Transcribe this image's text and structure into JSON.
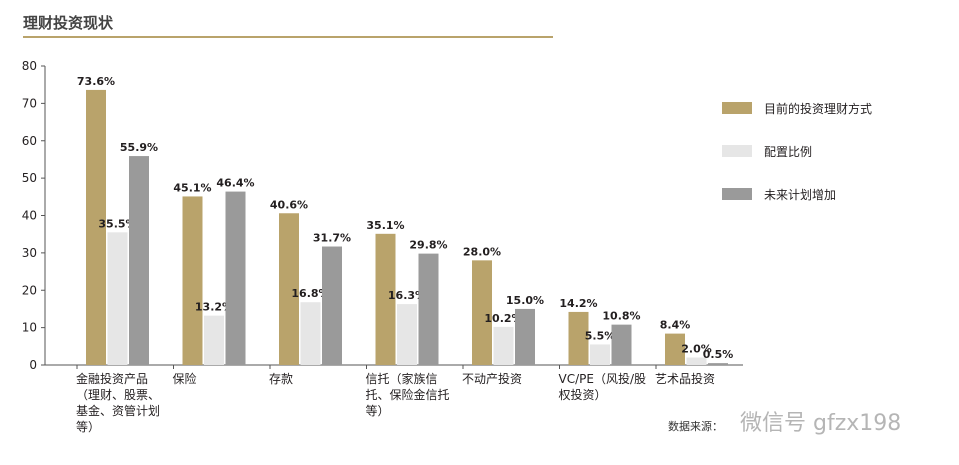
{
  "title": "理财投资现状",
  "source_label": "数据来源：",
  "watermark": "微信号 gfzx198",
  "chart_data": {
    "type": "bar",
    "title": "理财投资现状",
    "categories": [
      "金融投资产品（理财、股票、基金、资管计划等）",
      "保险",
      "存款",
      "信托（家族信托、保险金信托等）",
      "不动产投资",
      "VC/PE（风投/股权投资）",
      "艺术品投资"
    ],
    "series": [
      {
        "name": "目前的投资理财方式",
        "color": "#b9a36b",
        "values": [
          73.6,
          45.1,
          40.6,
          35.1,
          28.0,
          14.2,
          8.4
        ]
      },
      {
        "name": "配置比例",
        "color": "#e6e6e6",
        "values": [
          35.5,
          13.2,
          16.8,
          16.3,
          10.2,
          5.5,
          2.0
        ]
      },
      {
        "name": "未来计划增加",
        "color": "#9a9a9a",
        "values": [
          55.9,
          46.4,
          31.7,
          29.8,
          15.0,
          10.8,
          0.5
        ]
      }
    ],
    "ylim": [
      0,
      80
    ],
    "yticks": [
      0,
      10,
      20,
      30,
      40,
      50,
      60,
      70,
      80
    ],
    "legend_position": "right",
    "grid": false
  }
}
